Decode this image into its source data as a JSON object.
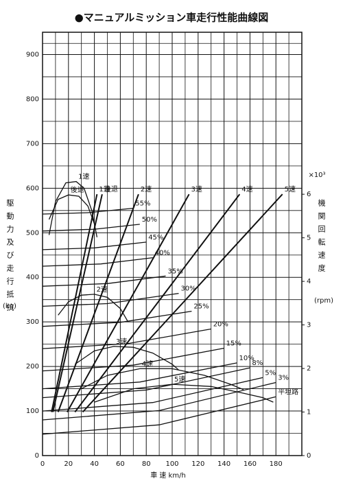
{
  "chart_data": {
    "type": "line",
    "title": "●マニュアルミッション車走行性能曲線図",
    "y_label": "駆動力及び走行抵抗",
    "y_unit": "(kg)",
    "y2_label": "機関回転速度",
    "y2_unit": "(rpm)",
    "y2_multiplier": "×10³",
    "x_label": "車 速 km/h",
    "xlim": [
      0,
      200
    ],
    "xticks": [
      0,
      20,
      40,
      60,
      80,
      100,
      120,
      140,
      160,
      180
    ],
    "ylim": [
      0,
      950
    ],
    "yticks": [
      0,
      100,
      200,
      300,
      400,
      500,
      600,
      700,
      800,
      900
    ],
    "y2lim": [
      0,
      9.72
    ],
    "y2ticks": [
      0,
      1,
      2,
      3,
      4,
      5,
      6
    ],
    "grid": true,
    "series": [
      {
        "name": "1速",
        "color": "#111111",
        "x": [
          5,
          10,
          18,
          26,
          32,
          38,
          42
        ],
        "values": [
          495,
          570,
          612,
          615,
          600,
          550,
          490
        ]
      },
      {
        "name": "後退",
        "color": "#111111",
        "x": [
          5,
          12,
          20,
          28,
          35,
          40
        ],
        "values": [
          530,
          575,
          585,
          582,
          560,
          520
        ]
      },
      {
        "name": "2速",
        "color": "#111111",
        "x": [
          12,
          20,
          30,
          40,
          50,
          60,
          66
        ],
        "values": [
          315,
          345,
          360,
          362,
          355,
          330,
          300
        ]
      },
      {
        "name": "3速",
        "color": "#111111",
        "x": [
          25,
          40,
          55,
          70,
          85,
          100,
          105
        ],
        "values": [
          205,
          235,
          245,
          243,
          230,
          205,
          192
        ]
      },
      {
        "name": "4速",
        "color": "#111111",
        "x": [
          30,
          50,
          75,
          100,
          125,
          145,
          155
        ],
        "values": [
          150,
          180,
          195,
          195,
          180,
          160,
          148
        ]
      },
      {
        "name": "5速",
        "color": "#111111",
        "x": [
          40,
          70,
          100,
          130,
          155,
          170,
          178
        ],
        "values": [
          120,
          150,
          160,
          155,
          140,
          130,
          120
        ]
      },
      {
        "name": "55%",
        "color": "#111111",
        "x": [
          0,
          35,
          70
        ],
        "values": [
          542,
          545,
          555
        ]
      },
      {
        "name": "50%",
        "color": "#111111",
        "x": [
          0,
          40,
          75
        ],
        "values": [
          504,
          508,
          519
        ]
      },
      {
        "name": "45%",
        "color": "#111111",
        "x": [
          0,
          40,
          80
        ],
        "values": [
          462,
          466,
          479
        ]
      },
      {
        "name": "40%",
        "color": "#111111",
        "x": [
          0,
          45,
          85
        ],
        "values": [
          425,
          430,
          444
        ]
      },
      {
        "name": "35%",
        "color": "#111111",
        "x": [
          0,
          50,
          95
        ],
        "values": [
          380,
          386,
          403
        ]
      },
      {
        "name": "30%",
        "color": "#111111",
        "x": [
          0,
          50,
          105
        ],
        "values": [
          335,
          341,
          364
        ]
      },
      {
        "name": "25%",
        "color": "#111111",
        "x": [
          0,
          60,
          115
        ],
        "values": [
          290,
          299,
          324
        ]
      },
      {
        "name": "20%",
        "color": "#111111",
        "x": [
          0,
          65,
          130
        ],
        "values": [
          240,
          251,
          284
        ]
      },
      {
        "name": "15%",
        "color": "#111111",
        "x": [
          0,
          70,
          140
        ],
        "values": [
          190,
          203,
          241
        ]
      },
      {
        "name": "10%",
        "color": "#111111",
        "x": [
          0,
          75,
          150
        ],
        "values": [
          150,
          165,
          208
        ]
      },
      {
        "name": "8%",
        "color": "#111111",
        "x": [
          0,
          80,
          160
        ],
        "values": [
          130,
          147,
          197
        ]
      },
      {
        "name": "5%",
        "color": "#111111",
        "x": [
          0,
          85,
          170
        ],
        "values": [
          100,
          119,
          175
        ]
      },
      {
        "name": "3%",
        "color": "#111111",
        "x": [
          0,
          90,
          180
        ],
        "values": [
          80,
          101,
          164
        ]
      },
      {
        "name": "平坦路",
        "color": "#111111",
        "x": [
          0,
          90,
          180
        ],
        "values": [
          48,
          69,
          132
        ]
      },
      {
        "name": "1速",
        "color": "#111111",
        "axis": "y2",
        "x": [
          7,
          42
        ],
        "values": [
          1,
          6
        ]
      },
      {
        "name": "後退",
        "color": "#111111",
        "axis": "y2",
        "x": [
          8,
          46
        ],
        "values": [
          1,
          6
        ]
      },
      {
        "name": "2速",
        "color": "#111111",
        "axis": "y2",
        "x": [
          12,
          74
        ],
        "values": [
          1,
          6
        ]
      },
      {
        "name": "3速",
        "color": "#111111",
        "axis": "y2",
        "x": [
          19,
          113
        ],
        "values": [
          1,
          6
        ]
      },
      {
        "name": "4速",
        "color": "#111111",
        "axis": "y2",
        "x": [
          25,
          152
        ],
        "values": [
          1,
          6
        ]
      },
      {
        "name": "5速",
        "color": "#111111",
        "axis": "y2",
        "x": [
          31,
          185
        ],
        "values": [
          1,
          6
        ]
      }
    ]
  }
}
